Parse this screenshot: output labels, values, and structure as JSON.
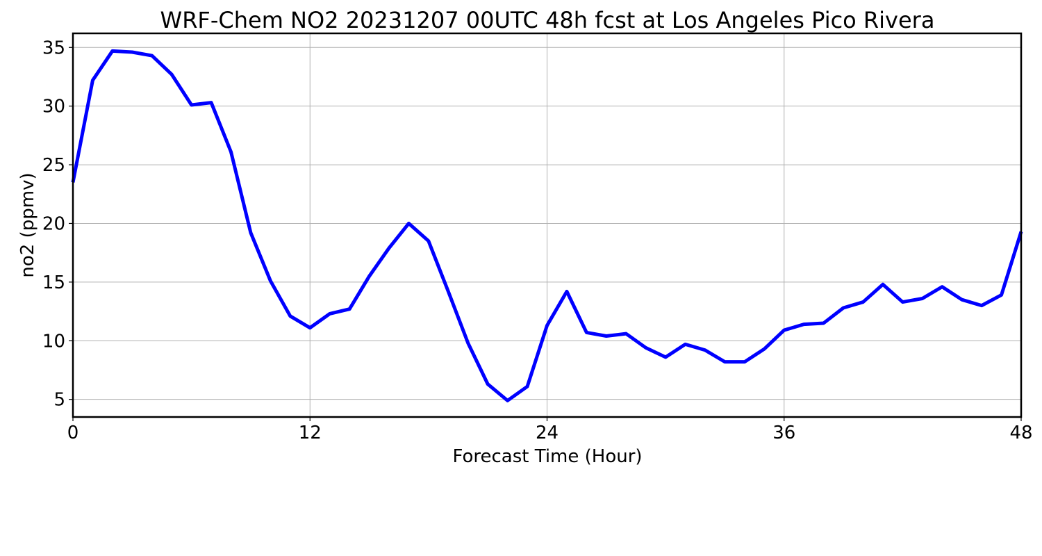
{
  "chart_data": {
    "type": "line",
    "title": "WRF-Chem NO2  20231207 00UTC 48h fcst at Los Angeles Pico Rivera",
    "xlabel": "Forecast Time (Hour)",
    "ylabel": "no2  (ppmv)",
    "xlim": [
      0,
      48
    ],
    "ylim": [
      3.5,
      36.2
    ],
    "xticks": [
      0,
      12,
      24,
      36,
      48
    ],
    "yticks": [
      5,
      10,
      15,
      20,
      25,
      30,
      35
    ],
    "grid": true,
    "series": [
      {
        "color": "#0000ff",
        "x": [
          0,
          1,
          2,
          3,
          4,
          5,
          6,
          7,
          8,
          9,
          10,
          11,
          12,
          13,
          14,
          15,
          16,
          17,
          18,
          19,
          20,
          21,
          22,
          23,
          24,
          25,
          26,
          27,
          28,
          29,
          30,
          31,
          32,
          33,
          34,
          35,
          36,
          37,
          38,
          39,
          40,
          41,
          42,
          43,
          44,
          45,
          46,
          47,
          48
        ],
        "values": [
          23.5,
          32.2,
          34.7,
          34.6,
          34.3,
          32.7,
          30.1,
          30.3,
          26.1,
          19.2,
          15.1,
          12.1,
          11.1,
          12.3,
          12.7,
          15.5,
          17.9,
          20.0,
          18.5,
          14.2,
          9.8,
          6.3,
          4.9,
          6.1,
          11.3,
          14.2,
          10.7,
          10.4,
          10.6,
          9.4,
          8.6,
          9.7,
          9.2,
          8.2,
          8.2,
          9.3,
          10.9,
          11.4,
          11.5,
          12.8,
          13.3,
          14.8,
          13.3,
          13.6,
          14.6,
          13.5,
          13.0,
          13.9,
          19.3
        ]
      }
    ]
  }
}
